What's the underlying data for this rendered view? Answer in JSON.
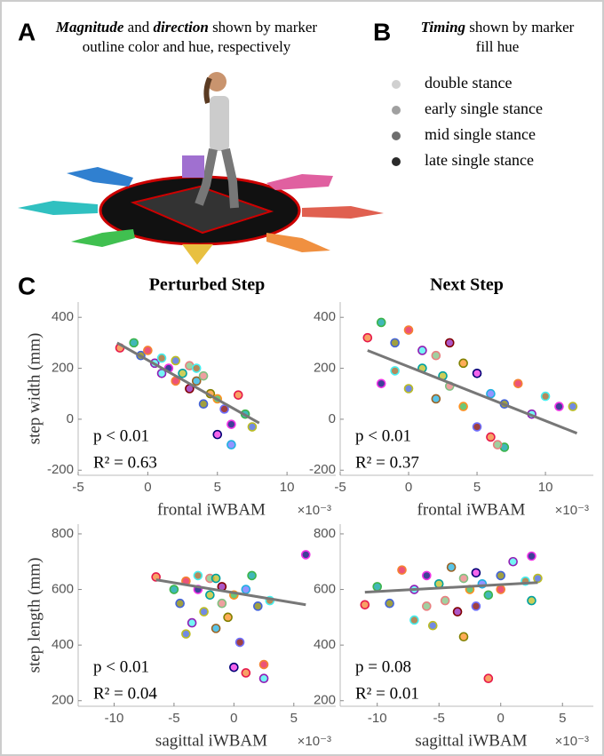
{
  "panel_a": {
    "letter": "A",
    "caption": [
      "Magnitude",
      " and ",
      "direction",
      " shown by marker",
      "outline color and hue, respectively"
    ]
  },
  "panel_b": {
    "letter": "B",
    "caption": [
      "Timing",
      " shown by marker",
      "fill hue"
    ],
    "legend": [
      {
        "name": "double stance",
        "color": "#d0d0d0"
      },
      {
        "name": "early single stance",
        "color": "#a0a0a0"
      },
      {
        "name": "mid single stance",
        "color": "#6e6e6e"
      },
      {
        "name": "late single stance",
        "color": "#2a2a2a"
      }
    ]
  },
  "panel_c": {
    "letter": "C"
  },
  "palette": [
    "#e6194b",
    "#3cb44b",
    "#4363d8",
    "#f58231",
    "#911eb4",
    "#46f0f0",
    "#f032e6",
    "#bcbd22",
    "#00a0a0",
    "#e88080",
    "#9a6324",
    "#800000",
    "#80c080",
    "#808000",
    "#ff9020",
    "#000075",
    "#7070ff",
    "#20b0e0"
  ],
  "chart_data": [
    {
      "type": "scatter",
      "title": "Perturbed Step",
      "xlabel": "frontal iWBAM",
      "ylabel": "step width (mm)",
      "exponent": "×10⁻³",
      "x": [
        -2,
        -1,
        -0.5,
        0,
        0.5,
        1,
        1.5,
        2,
        2.5,
        3,
        3.5,
        3,
        4,
        4.5,
        5,
        5,
        5.5,
        6,
        6.5,
        7,
        4,
        2,
        1,
        3.5,
        6,
        7.5
      ],
      "values": [
        280,
        300,
        250,
        270,
        220,
        240,
        200,
        230,
        180,
        210,
        150,
        120,
        170,
        100,
        80,
        -60,
        40,
        -100,
        95,
        20,
        60,
        150,
        180,
        200,
        -20,
        -30
      ],
      "xlim": [
        -5,
        13.5
      ],
      "ylim": [
        -220,
        460
      ],
      "xticks": [
        -5,
        0,
        5,
        10
      ],
      "yticks": [
        -200,
        0,
        200,
        400
      ],
      "fit": {
        "x": [
          -2.2,
          8
        ],
        "y": [
          300,
          -15
        ]
      },
      "annotations": [
        "p < 0.01",
        "R² = 0.63"
      ]
    },
    {
      "type": "scatter",
      "title": "Next Step",
      "xlabel": "frontal iWBAM",
      "exponent": "×10⁻³",
      "x": [
        -3,
        -2,
        -1,
        0,
        1,
        -1,
        -2,
        0,
        1,
        2,
        2,
        3,
        3,
        4,
        4,
        5,
        5,
        6,
        6,
        7,
        7,
        8,
        9,
        10,
        11,
        12,
        2.5,
        6.5
      ],
      "values": [
        320,
        380,
        300,
        350,
        270,
        190,
        140,
        120,
        200,
        250,
        80,
        300,
        130,
        220,
        50,
        180,
        -30,
        100,
        -70,
        -110,
        60,
        140,
        20,
        90,
        50,
        50,
        170,
        -100
      ],
      "xlim": [
        -5,
        13.5
      ],
      "ylim": [
        -220,
        460
      ],
      "xticks": [
        -5,
        0,
        5,
        10
      ],
      "yticks": [
        -200,
        0,
        200,
        400
      ],
      "fit": {
        "x": [
          -3,
          12.3
        ],
        "y": [
          270,
          -55
        ]
      },
      "annotations": [
        "p < 0.01",
        "R² = 0.37"
      ]
    },
    {
      "type": "scatter",
      "xlabel": "sagittal iWBAM",
      "ylabel": "step length (mm)",
      "exponent": "×10⁻³",
      "x": [
        -6.5,
        -5,
        -4.5,
        -4,
        -3.5,
        -3,
        -3,
        -2.5,
        -2,
        -2,
        -1.5,
        -1,
        -1,
        -0.5,
        0,
        0,
        0.5,
        1,
        1,
        1.5,
        2,
        2.5,
        2.5,
        3,
        6,
        -4,
        -1.5
      ],
      "values": [
        645,
        600,
        550,
        630,
        480,
        650,
        600,
        520,
        580,
        640,
        460,
        610,
        550,
        500,
        580,
        320,
        410,
        600,
        300,
        650,
        540,
        330,
        280,
        560,
        725,
        440,
        640
      ],
      "xlim": [
        -13,
        8.5
      ],
      "ylim": [
        180,
        835
      ],
      "xticks": [
        -10,
        -5,
        0,
        5
      ],
      "yticks": [
        200,
        400,
        600,
        800
      ],
      "fit": {
        "x": [
          -6.5,
          6
        ],
        "y": [
          635,
          545
        ]
      },
      "annotations": [
        "p < 0.01",
        "R² = 0.04"
      ]
    },
    {
      "type": "scatter",
      "xlabel": "sagittal iWBAM",
      "exponent": "×10⁻³",
      "x": [
        -11,
        -10,
        -9,
        -8,
        -7,
        -7,
        -6,
        -5.5,
        -5,
        -4.5,
        -4,
        -3.5,
        -3,
        -3,
        -2.5,
        -2,
        -2,
        -1.5,
        -1,
        -1,
        0,
        0,
        1,
        2,
        2.5,
        3,
        2.5,
        -6
      ],
      "values": [
        545,
        610,
        550,
        670,
        600,
        490,
        650,
        470,
        620,
        560,
        680,
        520,
        640,
        430,
        600,
        660,
        540,
        620,
        280,
        580,
        650,
        600,
        700,
        630,
        720,
        640,
        560,
        540
      ],
      "xlim": [
        -13,
        7.5
      ],
      "ylim": [
        180,
        835
      ],
      "xticks": [
        -10,
        -5,
        0,
        5
      ],
      "yticks": [
        200,
        400,
        600,
        800
      ],
      "fit": {
        "x": [
          -11,
          3
        ],
        "y": [
          590,
          625
        ]
      },
      "annotations": [
        "p = 0.08",
        "R² = 0.01"
      ]
    }
  ]
}
